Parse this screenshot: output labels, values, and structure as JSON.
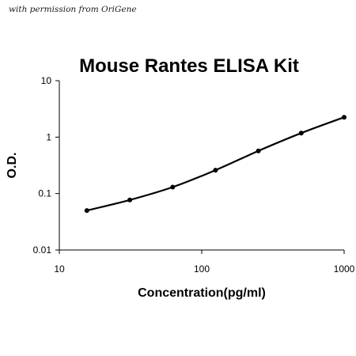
{
  "credit_text": "with permission from OriGene",
  "chart_data": {
    "type": "line",
    "title": "Mouse Rantes ELISA Kit",
    "xlabel": "Concentration(pg/ml)",
    "ylabel": "O.D.",
    "xscale": "log",
    "yscale": "log",
    "xlim": [
      10,
      1000
    ],
    "ylim": [
      0.01,
      10
    ],
    "x_ticks": [
      "10",
      "100",
      "1000"
    ],
    "y_ticks": [
      "0.01",
      "0.1",
      "1",
      "10"
    ],
    "grid": false,
    "legend": "none",
    "line_color": "#000000",
    "series": [
      {
        "x": [
          15.6,
          31.25,
          62.5,
          125,
          250,
          500,
          1000
        ],
        "y": [
          0.05,
          0.077,
          0.13,
          0.26,
          0.57,
          1.18,
          2.25
        ]
      }
    ]
  }
}
